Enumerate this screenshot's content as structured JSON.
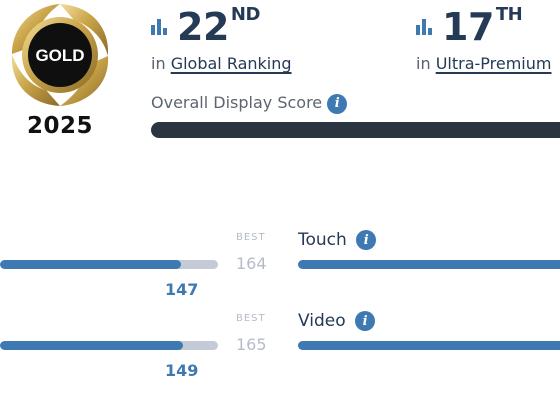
{
  "badge": {
    "label": "GOLD",
    "year": "2025"
  },
  "rankings": [
    {
      "number": "22",
      "suffix": "ND",
      "prefix": "in",
      "link": "Global Ranking"
    },
    {
      "number": "17",
      "suffix": "TH",
      "prefix": "in",
      "link": "Ultra-Premium"
    }
  ],
  "overall": {
    "label": "Overall Display Score"
  },
  "rows": [
    {
      "score": "147",
      "best_label": "BEST",
      "best": "164",
      "category": "Touch"
    },
    {
      "score": "149",
      "best_label": "BEST",
      "best": "165",
      "category": "Video"
    }
  ],
  "colors": {
    "accent": "#3f79b1",
    "dark": "#243a55",
    "gold": "#c9a449"
  },
  "icons": {
    "rank": "bar-chart-icon",
    "info": "info-icon"
  }
}
